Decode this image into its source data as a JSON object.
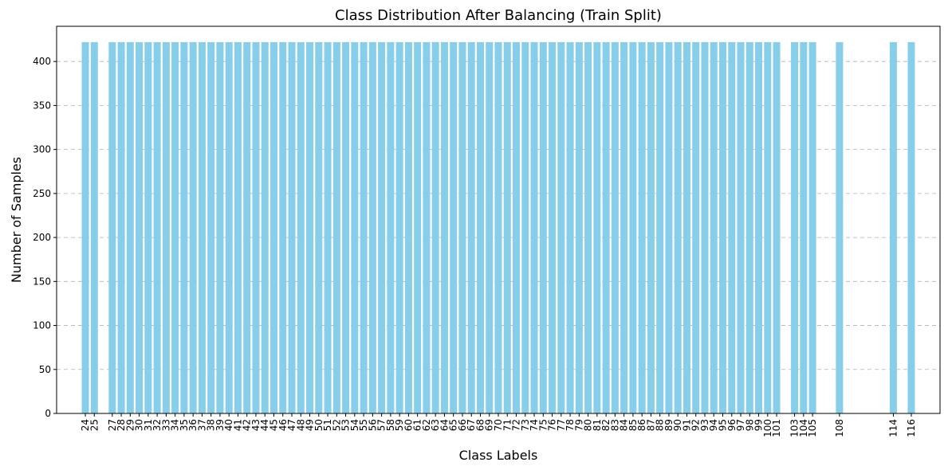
{
  "chart_data": {
    "type": "bar",
    "title": "Class Distribution After Balancing (Train Split)",
    "xlabel": "Class Labels",
    "ylabel": "Number of Samples",
    "ylim": [
      0,
      440
    ],
    "yticks": [
      0,
      50,
      100,
      150,
      200,
      250,
      300,
      350,
      400
    ],
    "xlim": [
      20.8,
      119.2
    ],
    "grid": "y-dashed",
    "bar_color": "#87ceeb",
    "categories": [
      24,
      25,
      27,
      28,
      29,
      30,
      31,
      32,
      33,
      34,
      35,
      36,
      37,
      38,
      39,
      40,
      41,
      42,
      43,
      44,
      45,
      46,
      47,
      48,
      49,
      50,
      51,
      52,
      53,
      54,
      55,
      56,
      57,
      58,
      59,
      60,
      61,
      62,
      63,
      64,
      65,
      66,
      67,
      68,
      69,
      70,
      71,
      72,
      73,
      74,
      75,
      76,
      77,
      78,
      79,
      80,
      81,
      82,
      83,
      84,
      85,
      86,
      87,
      88,
      89,
      90,
      91,
      92,
      93,
      94,
      95,
      96,
      97,
      98,
      99,
      100,
      101,
      103,
      104,
      105,
      108,
      114,
      116
    ],
    "values": [
      422,
      422,
      422,
      422,
      422,
      422,
      422,
      422,
      422,
      422,
      422,
      422,
      422,
      422,
      422,
      422,
      422,
      422,
      422,
      422,
      422,
      422,
      422,
      422,
      422,
      422,
      422,
      422,
      422,
      422,
      422,
      422,
      422,
      422,
      422,
      422,
      422,
      422,
      422,
      422,
      422,
      422,
      422,
      422,
      422,
      422,
      422,
      422,
      422,
      422,
      422,
      422,
      422,
      422,
      422,
      422,
      422,
      422,
      422,
      422,
      422,
      422,
      422,
      422,
      422,
      422,
      422,
      422,
      422,
      422,
      422,
      422,
      422,
      422,
      422,
      422,
      422,
      422,
      422,
      422,
      422,
      422,
      422
    ]
  }
}
